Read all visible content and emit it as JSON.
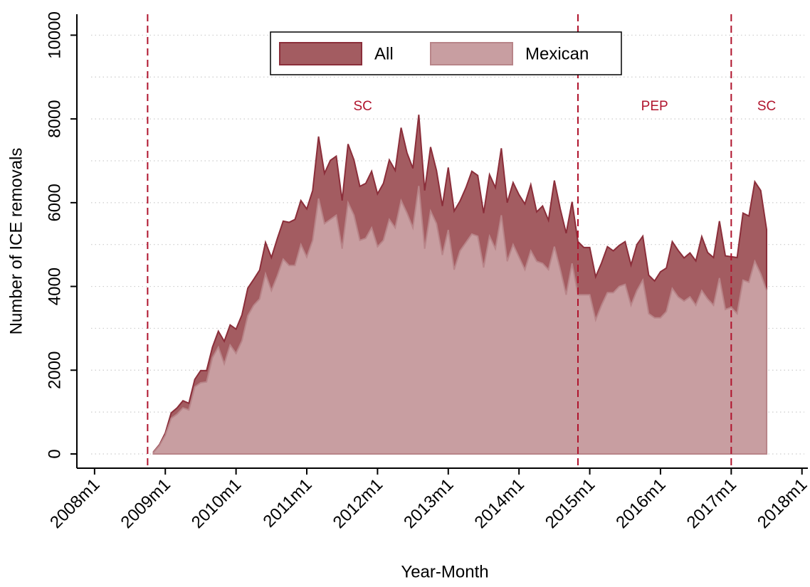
{
  "chart_data": {
    "type": "area",
    "x_label": "Year-Month",
    "y_label": "Number of ICE removals",
    "x": [
      "2008m11",
      "2008m12",
      "2009m1",
      "2009m2",
      "2009m3",
      "2009m4",
      "2009m5",
      "2009m6",
      "2009m7",
      "2009m8",
      "2009m9",
      "2009m10",
      "2009m11",
      "2009m12",
      "2010m1",
      "2010m2",
      "2010m3",
      "2010m4",
      "2010m5",
      "2010m6",
      "2010m7",
      "2010m8",
      "2010m9",
      "2010m10",
      "2010m11",
      "2010m12",
      "2011m1",
      "2011m2",
      "2011m3",
      "2011m4",
      "2011m5",
      "2011m6",
      "2011m7",
      "2011m8",
      "2011m9",
      "2011m10",
      "2011m11",
      "2011m12",
      "2012m1",
      "2012m2",
      "2012m3",
      "2012m4",
      "2012m5",
      "2012m6",
      "2012m7",
      "2012m8",
      "2012m9",
      "2012m10",
      "2012m11",
      "2012m12",
      "2013m1",
      "2013m2",
      "2013m3",
      "2013m4",
      "2013m5",
      "2013m6",
      "2013m7",
      "2013m8",
      "2013m9",
      "2013m10",
      "2013m11",
      "2013m12",
      "2014m1",
      "2014m2",
      "2014m3",
      "2014m4",
      "2014m5",
      "2014m6",
      "2014m7",
      "2014m8",
      "2014m9",
      "2014m10",
      "2014m11",
      "2014m12",
      "2015m1",
      "2015m2",
      "2015m3",
      "2015m4",
      "2015m5",
      "2015m6",
      "2015m7",
      "2015m8",
      "2015m9",
      "2015m10",
      "2015m11",
      "2015m12",
      "2016m1",
      "2016m2",
      "2016m3",
      "2016m4",
      "2016m5",
      "2016m6",
      "2016m7",
      "2016m8",
      "2016m9",
      "2016m10",
      "2016m11",
      "2016m12",
      "2017m1",
      "2017m2",
      "2017m3",
      "2017m4",
      "2017m5",
      "2017m6",
      "2017m7"
    ],
    "series": [
      {
        "name": "All",
        "color": "#a35c61",
        "edge": "#8b2e3a",
        "values": [
          50,
          220,
          500,
          980,
          1100,
          1270,
          1210,
          1780,
          1990,
          1990,
          2550,
          2930,
          2690,
          3080,
          2980,
          3320,
          3960,
          4170,
          4390,
          5050,
          4690,
          5140,
          5560,
          5530,
          5600,
          6050,
          5850,
          6290,
          7580,
          6700,
          7010,
          7110,
          6050,
          7400,
          7020,
          6390,
          6460,
          6750,
          6210,
          6460,
          7020,
          6770,
          7790,
          7190,
          6820,
          8100,
          6290,
          7330,
          6770,
          5920,
          6840,
          5800,
          6040,
          6360,
          6750,
          6650,
          5750,
          6670,
          6360,
          7300,
          6000,
          6480,
          6190,
          5970,
          6430,
          5780,
          5920,
          5580,
          6530,
          5850,
          5270,
          6020,
          5070,
          4930,
          4930,
          4230,
          4560,
          4950,
          4850,
          4980,
          5070,
          4510,
          5000,
          5200,
          4270,
          4130,
          4350,
          4440,
          5070,
          4860,
          4680,
          4800,
          4610,
          5190,
          4810,
          4690,
          5560,
          4730,
          4710,
          4690,
          5750,
          5680,
          6500,
          6290,
          5360
        ]
      },
      {
        "name": "Mexican",
        "color": "#c89ea1",
        "edge": "#b88589",
        "values": [
          40,
          200,
          450,
          850,
          950,
          1100,
          1050,
          1600,
          1700,
          1720,
          2300,
          2550,
          2150,
          2600,
          2400,
          2700,
          3300,
          3550,
          3700,
          4300,
          3900,
          4250,
          4650,
          4500,
          4500,
          5000,
          4700,
          5100,
          6100,
          5500,
          5600,
          5700,
          4900,
          6000,
          5700,
          5100,
          5150,
          5400,
          4950,
          5100,
          5600,
          5400,
          6050,
          5750,
          5400,
          6400,
          4900,
          5800,
          5500,
          4750,
          5350,
          4400,
          4850,
          5050,
          5250,
          5200,
          4450,
          5200,
          4900,
          5700,
          4600,
          5000,
          4700,
          4400,
          4850,
          4600,
          4550,
          4400,
          4950,
          4400,
          3800,
          4550,
          3800,
          3800,
          3800,
          3200,
          3550,
          3850,
          3850,
          4000,
          4050,
          3550,
          3900,
          4150,
          3350,
          3250,
          3250,
          3400,
          3950,
          3750,
          3650,
          3750,
          3550,
          3900,
          3700,
          3550,
          4200,
          3450,
          3500,
          3350,
          4150,
          4100,
          4600,
          4300,
          3900
        ]
      }
    ],
    "xlim": [
      "2007m10",
      "2018m2"
    ],
    "xticks": [
      "2008m1",
      "2009m1",
      "2010m1",
      "2011m1",
      "2012m1",
      "2013m1",
      "2014m1",
      "2015m1",
      "2016m1",
      "2017m1",
      "2018m1"
    ],
    "ylim": [
      -340,
      10500
    ],
    "yticks": [
      0,
      2000,
      4000,
      6000,
      8000,
      10000
    ],
    "yminor_ticks": [
      1000,
      3000,
      5000,
      7000,
      9000
    ],
    "grid": true,
    "vlines": [
      "2008m10",
      "2014m11",
      "2017m1"
    ],
    "vline_color": "#b0142d",
    "annotations": [
      "SC",
      "PEP",
      "SC"
    ],
    "legend_position": "top"
  }
}
